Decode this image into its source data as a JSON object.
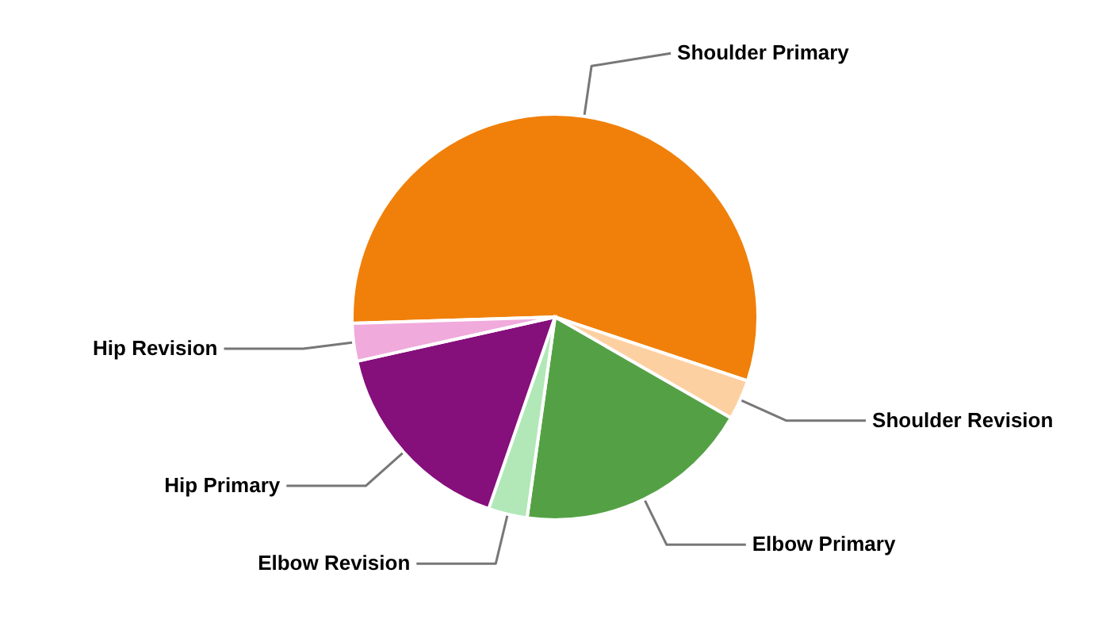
{
  "chart_data": {
    "type": "pie",
    "categories": [
      "Shoulder Primary",
      "Shoulder Revision",
      "Elbow Primary",
      "Elbow Revision",
      "Hip Primary",
      "Hip Revision"
    ],
    "values": [
      55.6,
      3.2,
      18.9,
      3.1,
      16.2,
      3.0
    ],
    "colors": [
      "#f0800a",
      "#fdd0a2",
      "#54a145",
      "#b2e8b8",
      "#850f7b",
      "#f0aadc"
    ]
  }
}
